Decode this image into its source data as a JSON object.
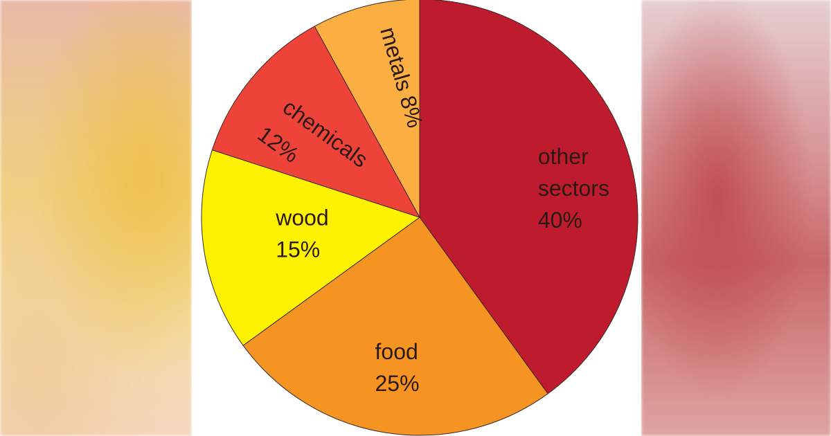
{
  "chart_data": {
    "type": "pie",
    "title": "",
    "start_angle_deg": 0,
    "direction": "clockwise",
    "slices": [
      {
        "label": "other sectors",
        "label_lines": [
          "other",
          "sectors"
        ],
        "value": 40,
        "display": "40%",
        "color": "#be1b2e"
      },
      {
        "label": "food",
        "label_lines": [
          "food"
        ],
        "value": 25,
        "display": "25%",
        "color": "#f59423"
      },
      {
        "label": "wood",
        "label_lines": [
          "wood"
        ],
        "value": 15,
        "display": "15%",
        "color": "#fff200"
      },
      {
        "label": "chemicals",
        "label_lines": [
          "chemicals"
        ],
        "value": 12,
        "display": "12%",
        "color": "#ee4338"
      },
      {
        "label": "metals",
        "label_lines": [
          "metals"
        ],
        "value": 8,
        "display": "8%",
        "color": "#fbae42"
      }
    ]
  }
}
